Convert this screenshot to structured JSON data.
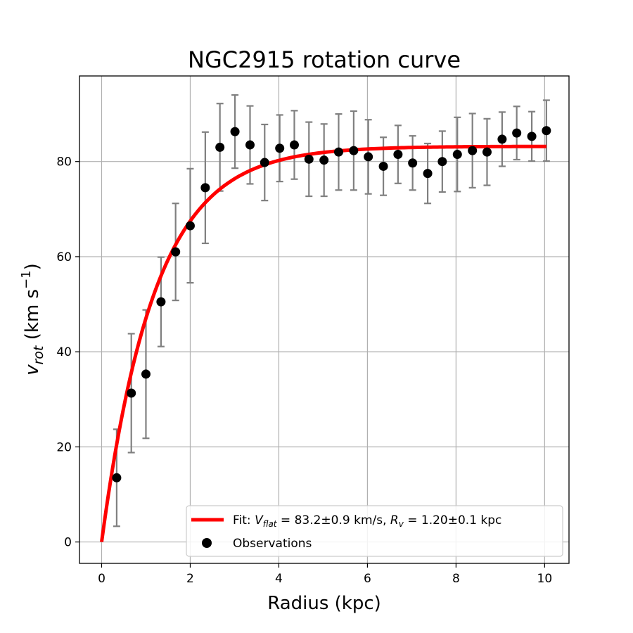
{
  "chart_data": {
    "type": "scatter",
    "title": "NGC2915 rotation curve",
    "xlabel": "Radius (kpc)",
    "ylabel": {
      "main": "v",
      "sub": "rot",
      "rest": " (km s",
      "sup": "−1",
      "close": ")"
    },
    "xlim": [
      -0.5,
      10.55
    ],
    "ylim": [
      -4.5,
      98
    ],
    "xticks": [
      0,
      2,
      4,
      6,
      8,
      10
    ],
    "yticks": [
      0,
      20,
      40,
      60,
      80
    ],
    "grid": true,
    "legend_position": "lower-right",
    "series": [
      {
        "name": "Observations",
        "kind": "scatter-errorbar",
        "color": "#000000",
        "error_color": "#808080",
        "x": [
          0.34,
          0.67,
          1.0,
          1.34,
          1.67,
          2.0,
          2.34,
          2.67,
          3.01,
          3.35,
          3.68,
          4.02,
          4.35,
          4.68,
          5.02,
          5.35,
          5.69,
          6.02,
          6.36,
          6.69,
          7.02,
          7.36,
          7.69,
          8.03,
          8.37,
          8.7,
          9.04,
          9.37,
          9.71,
          10.04
        ],
        "y": [
          13.5,
          31.3,
          35.3,
          50.5,
          61.0,
          66.5,
          74.5,
          83.0,
          86.3,
          83.5,
          79.8,
          82.8,
          83.5,
          80.5,
          80.3,
          82.0,
          82.3,
          81.0,
          79.0,
          81.5,
          79.7,
          77.5,
          80.0,
          81.5,
          82.3,
          82.0,
          84.7,
          86.0,
          85.3,
          86.5
        ],
        "yerr": [
          10.2,
          12.5,
          13.5,
          9.4,
          10.2,
          12.0,
          11.7,
          9.2,
          7.7,
          8.2,
          8.0,
          7.0,
          7.2,
          7.8,
          7.6,
          8.0,
          8.3,
          7.8,
          6.1,
          6.1,
          5.7,
          6.3,
          6.4,
          7.8,
          7.8,
          7.0,
          5.7,
          5.6,
          5.2,
          6.4
        ]
      },
      {
        "name": "Fit",
        "kind": "line",
        "color": "#ff0000",
        "model": "V_flat * (1 - exp(-r / R_v))",
        "V_flat": 83.2,
        "R_v": 1.2,
        "x_range": [
          0,
          10.04
        ]
      }
    ],
    "legend": [
      {
        "series": "Fit",
        "prefix": "Fit: ",
        "v_main": "V",
        "v_sub": "flat",
        "v_value": " = 83.2±0.9 km/s, ",
        "r_main": "R",
        "r_sub": "v",
        "r_value": " = 1.20±0.1 kpc"
      },
      {
        "series": "Observations",
        "text": "Observations"
      }
    ]
  }
}
